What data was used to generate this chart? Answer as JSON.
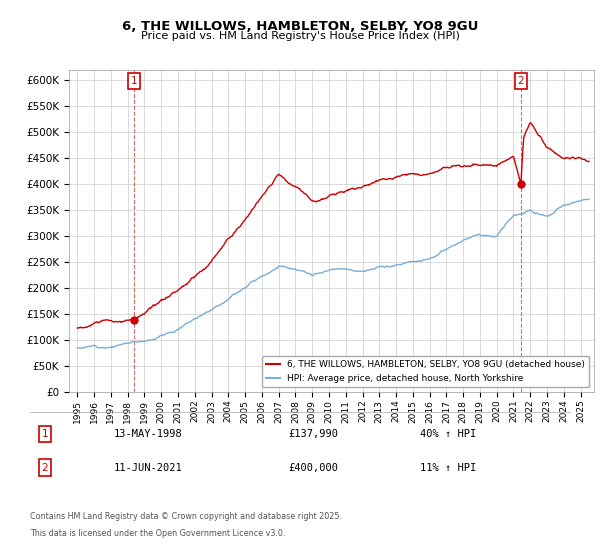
{
  "title": "6, THE WILLOWS, HAMBLETON, SELBY, YO8 9GU",
  "subtitle": "Price paid vs. HM Land Registry's House Price Index (HPI)",
  "line1_label": "6, THE WILLOWS, HAMBLETON, SELBY, YO8 9GU (detached house)",
  "line2_label": "HPI: Average price, detached house, North Yorkshire",
  "sale1_date_x": 1998.36,
  "sale1_price": 137990,
  "sale1_label": "1",
  "sale1_text": "13-MAY-1998",
  "sale1_price_text": "£137,990",
  "sale1_hpi_text": "40% ↑ HPI",
  "sale2_date_x": 2021.44,
  "sale2_price": 400000,
  "sale2_label": "2",
  "sale2_text": "11-JUN-2021",
  "sale2_price_text": "£400,000",
  "sale2_hpi_text": "11% ↑ HPI",
  "ylim_min": 0,
  "ylim_max": 620000,
  "xlim_min": 1994.5,
  "xlim_max": 2025.8,
  "red_color": "#cc0000",
  "blue_color": "#7aaed6",
  "footer_line1": "Contains HM Land Registry data © Crown copyright and database right 2025.",
  "footer_line2": "This data is licensed under the Open Government Licence v3.0."
}
